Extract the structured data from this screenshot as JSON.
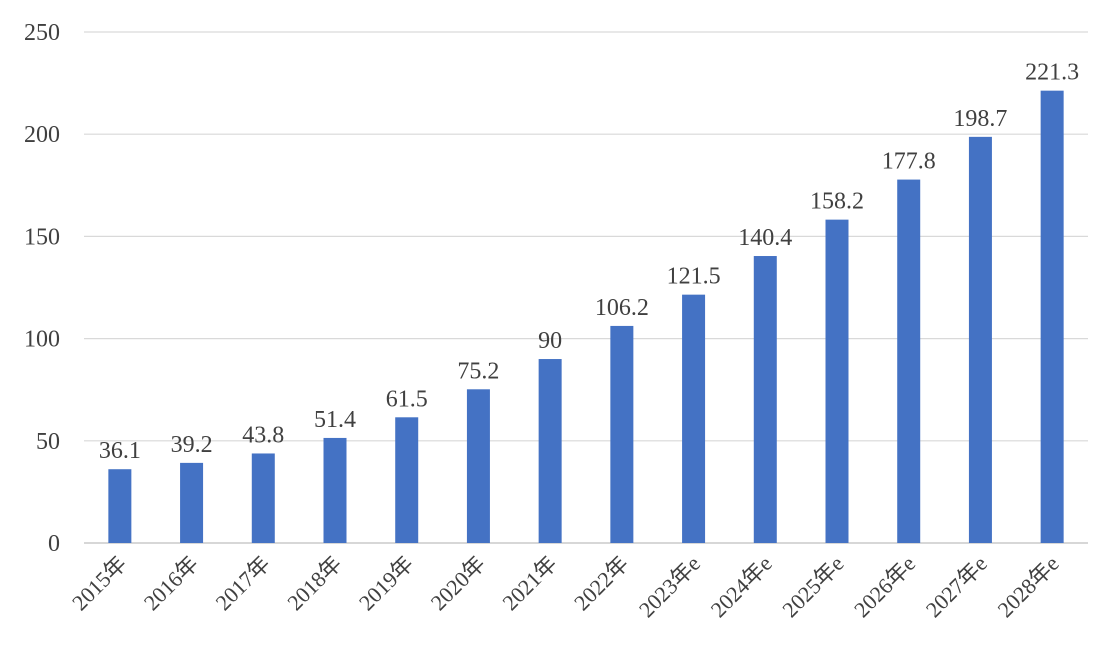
{
  "chart_data": {
    "type": "bar",
    "categories": [
      "2015年",
      "2016年",
      "2017年",
      "2018年",
      "2019年",
      "2020年",
      "2021年",
      "2022年",
      "2023年e",
      "2024年e",
      "2025年e",
      "2026年e",
      "2027年e",
      "2028年e"
    ],
    "values": [
      36.1,
      39.2,
      43.8,
      51.4,
      61.5,
      75.2,
      90,
      106.2,
      121.5,
      140.4,
      158.2,
      177.8,
      198.7,
      221.3
    ],
    "value_labels": [
      "36.1",
      "39.2",
      "43.8",
      "51.4",
      "61.5",
      "75.2",
      "90",
      "106.2",
      "121.5",
      "140.4",
      "158.2",
      "177.8",
      "198.7",
      "221.3"
    ],
    "yticks": [
      0,
      50,
      100,
      150,
      200,
      250
    ],
    "ytick_labels": [
      "0",
      "50",
      "100",
      "150",
      "200",
      "250"
    ],
    "ylim": [
      0,
      250
    ],
    "grid": true,
    "legend": "none",
    "colors": {
      "bar": "#4472c4",
      "grid": "#d9d9d9",
      "text": "#404040"
    }
  }
}
